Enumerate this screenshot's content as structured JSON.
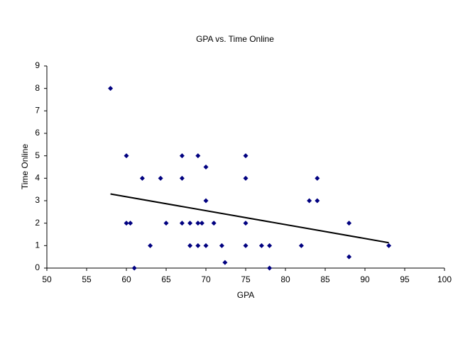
{
  "chart_data": {
    "type": "scatter",
    "title": "GPA vs. Time Online",
    "x_label": "GPA",
    "y_label": "Time Online",
    "x": [
      58,
      60,
      60,
      60.5,
      61,
      62,
      63,
      64.3,
      65,
      67,
      67,
      67,
      68,
      68,
      69,
      69,
      69.5,
      69,
      70,
      70,
      70,
      71,
      72,
      72.4,
      75,
      75,
      75,
      75,
      77,
      78,
      78,
      82,
      83,
      84,
      84,
      88,
      88,
      93
    ],
    "values": [
      8,
      5,
      2,
      2,
      0,
      4,
      1,
      4,
      2,
      5,
      4,
      2,
      2,
      1,
      5,
      2,
      2,
      1,
      4.5,
      3,
      1,
      2,
      1,
      0.25,
      5,
      4,
      2,
      1,
      1,
      1,
      0,
      1,
      3,
      4,
      3,
      2,
      0.5,
      1
    ],
    "color": "#000080",
    "trendline": {
      "x": [
        58,
        93
      ],
      "values": [
        3.3,
        1.13
      ],
      "color": "#000000"
    },
    "xlim": [
      50,
      100
    ],
    "xticks": [
      50,
      55,
      60,
      65,
      70,
      75,
      80,
      85,
      90,
      95,
      100
    ],
    "ylim": [
      0,
      9
    ],
    "yticks": [
      0,
      1,
      2,
      3,
      4,
      5,
      6,
      7,
      8,
      9
    ],
    "grid": false
  }
}
